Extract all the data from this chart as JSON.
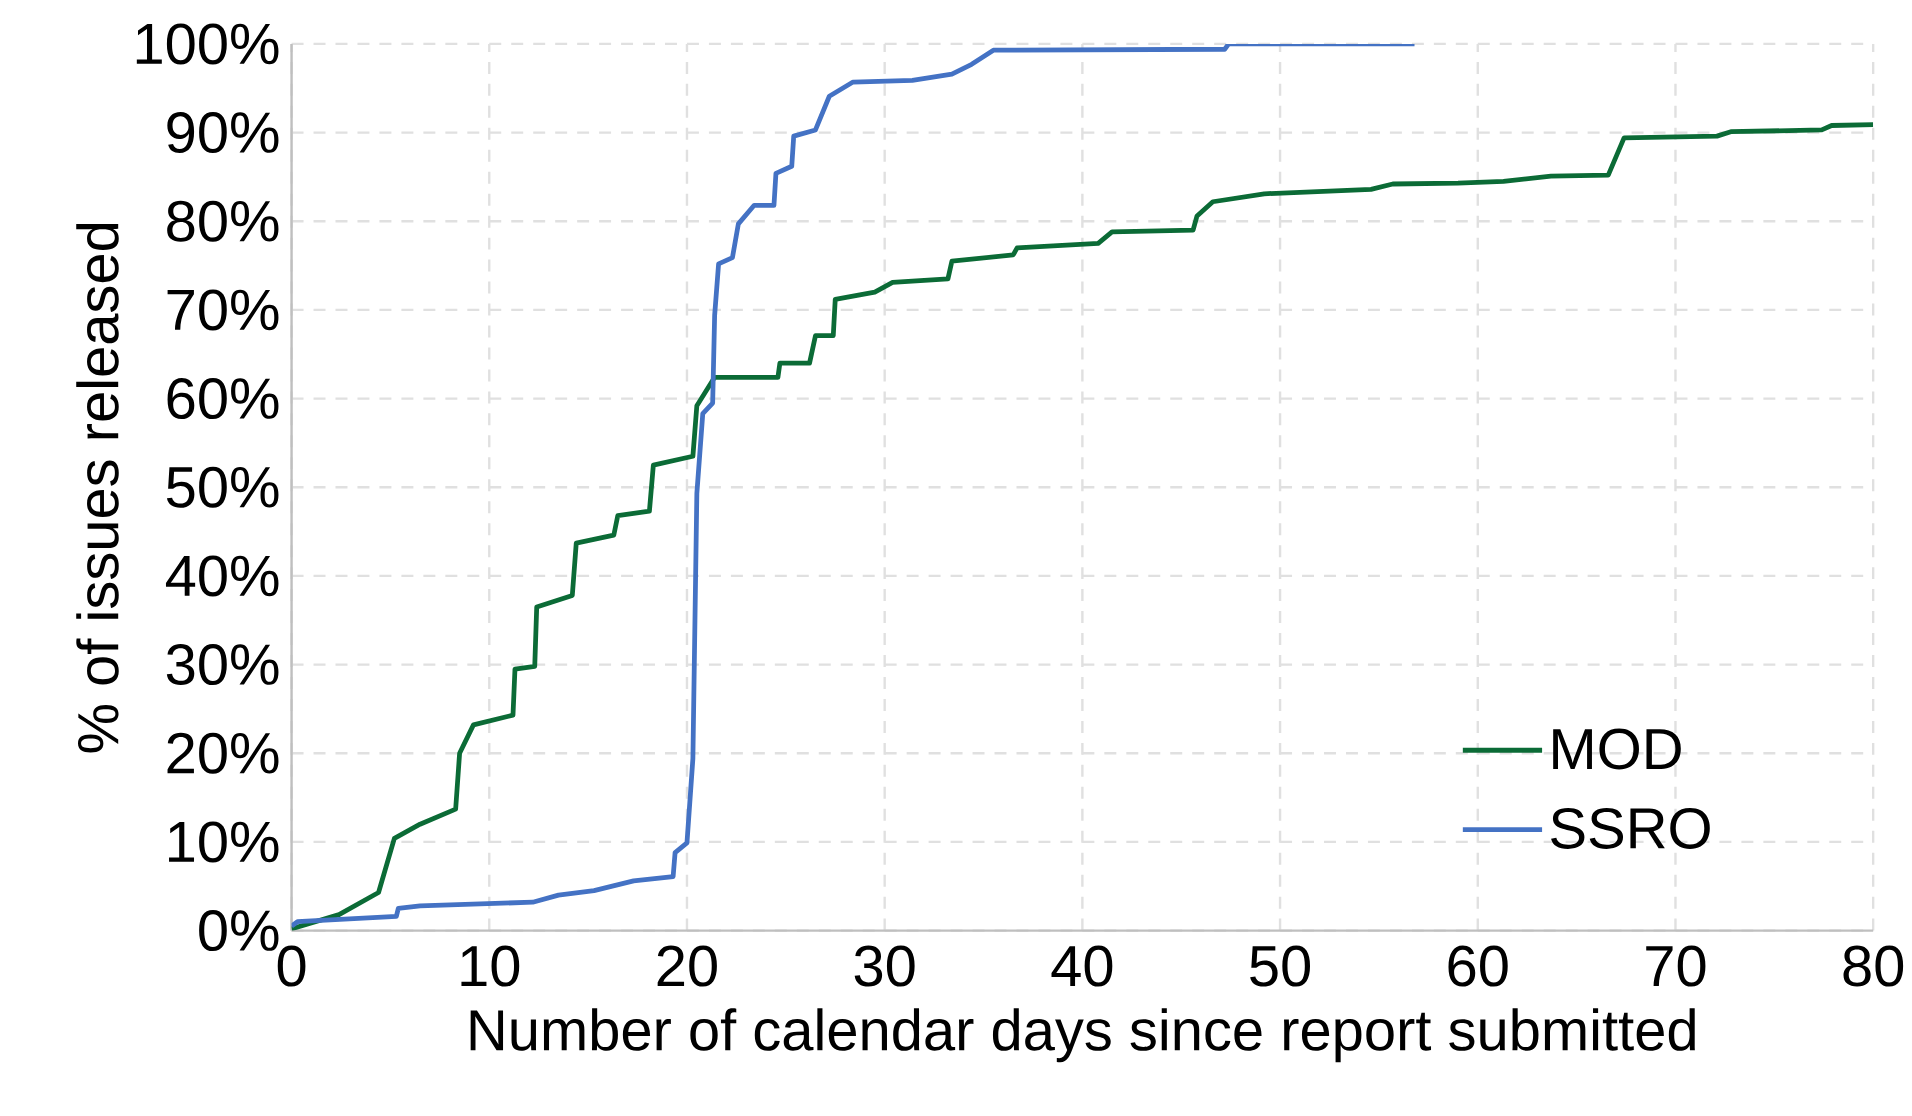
{
  "chart_data": {
    "type": "line",
    "xlabel": "Number of calendar days since report submitted",
    "ylabel": "% of issues released",
    "xlim": [
      0,
      80
    ],
    "xticks": [
      0,
      10,
      20,
      30,
      40,
      50,
      60,
      70,
      80
    ],
    "ylim": [
      0,
      100
    ],
    "yticks": [
      {
        "value": 0,
        "label": "0%"
      },
      {
        "value": 10,
        "label": "10%"
      },
      {
        "value": 20,
        "label": "20%"
      },
      {
        "value": 30,
        "label": "30%"
      },
      {
        "value": 40,
        "label": "40%"
      },
      {
        "value": 50,
        "label": "50%"
      },
      {
        "value": 60,
        "label": "60%"
      },
      {
        "value": 70,
        "label": "70%"
      },
      {
        "value": 80,
        "label": "80%"
      },
      {
        "value": 90,
        "label": "90%"
      },
      {
        "value": 100,
        "label": "100%"
      }
    ],
    "grid": true,
    "legend": "bottom right",
    "series": [
      {
        "name": "MOD",
        "color": "#0b6b36",
        "x": [
          0,
          2.4,
          4.4,
          5.2,
          6.5,
          8.3,
          8.5,
          9.2,
          11.2,
          11.3,
          12.3,
          12.4,
          14.2,
          14.4,
          16.3,
          16.5,
          18.1,
          18.3,
          20.3,
          20.5,
          21.4,
          24.6,
          24.7,
          26.2,
          26.5,
          27.4,
          27.5,
          29.5,
          30.4,
          33.2,
          33.4,
          36.5,
          36.7,
          40.8,
          41.5,
          45.6,
          45.8,
          46.6,
          49.2,
          54.6,
          55.7,
          59,
          61.3,
          63.7,
          66.6,
          67.4,
          72.1,
          72.8,
          77.4,
          77.9,
          80
        ],
        "values": [
          0.2,
          1.8,
          4.3,
          10.4,
          12,
          13.7,
          20,
          23.2,
          24.3,
          29.5,
          29.8,
          36.5,
          37.8,
          43.7,
          44.6,
          46.8,
          47.3,
          52.5,
          53.5,
          59.2,
          62.4,
          62.4,
          64,
          64,
          67.1,
          67.1,
          71.2,
          72,
          73.1,
          73.5,
          75.5,
          76.2,
          77,
          77.5,
          78.8,
          79,
          80.6,
          82.2,
          83.1,
          83.6,
          84.2,
          84.3,
          84.5,
          85.1,
          85.2,
          89.4,
          89.6,
          90.1,
          90.3,
          90.8,
          90.9
        ]
      },
      {
        "name": "SSRO",
        "color": "#4472c4",
        "x": [
          0,
          0.3,
          5.3,
          5.4,
          6.5,
          12.2,
          13.5,
          15.3,
          17.3,
          19.3,
          19.4,
          20,
          20.3,
          20.5,
          20.8,
          21.3,
          21.4,
          21.6,
          22.3,
          22.6,
          23.4,
          24.4,
          24.5,
          25.3,
          25.4,
          26.5,
          27.2,
          28.4,
          31.4,
          33.4,
          34.4,
          35.5,
          47.2,
          47.4,
          56.8
        ],
        "values": [
          0.5,
          1,
          1.6,
          2.5,
          2.8,
          3.2,
          4,
          4.5,
          5.6,
          6.1,
          8.8,
          9.9,
          19.4,
          49.3,
          58.3,
          59.5,
          69.4,
          75.2,
          75.9,
          79.7,
          81.8,
          81.8,
          85.4,
          86.2,
          89.6,
          90.3,
          94.1,
          95.7,
          95.9,
          96.6,
          97.7,
          99.3,
          99.4,
          100,
          100
        ]
      }
    ]
  }
}
